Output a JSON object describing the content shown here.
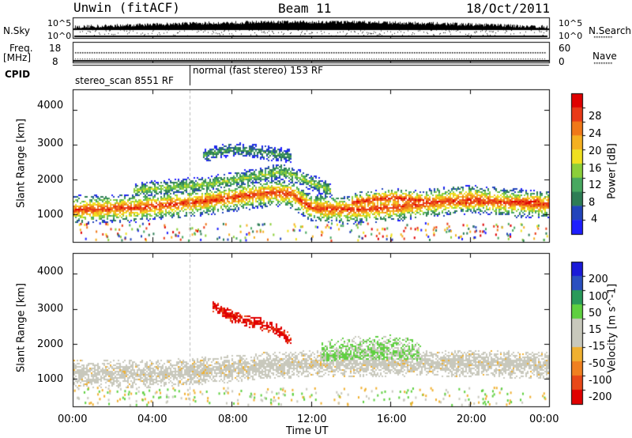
{
  "header": {
    "site": "Unwin (fitACF)",
    "beam": "Beam 11",
    "date": "18/Oct/2011"
  },
  "summary": {
    "nsky_label": "N.Sky",
    "nsearch_label": "N.Search",
    "nsky_ticks": [
      "10^5",
      "10^0"
    ],
    "nsearch_ticks": [
      "10^5",
      "10^0"
    ],
    "freq_label": "Freq.",
    "freq_unit": "[MHz]",
    "freq_ticks": [
      "18",
      "8"
    ],
    "nave_label": "Nave",
    "nave_ticks": [
      "60",
      "0"
    ],
    "cpid_label": "CPID",
    "cpid_segments": [
      "stereo_scan 8551 RF",
      "normal (fast stereo) 153 RF"
    ]
  },
  "colors": {
    "power": [
      "#1e1eff",
      "#2244bb",
      "#2e7d55",
      "#48a860",
      "#8ccf3a",
      "#f0e020",
      "#f5b020",
      "#f07818",
      "#e83a18",
      "#e00000"
    ],
    "velocity": [
      "#1a1ad8",
      "#2a4fc0",
      "#2a9a5a",
      "#5fd040",
      "#c8c8bc",
      "#c8c8bc",
      "#f0b030",
      "#f08020",
      "#e84818",
      "#e00000"
    ],
    "ground_scatter": "#c8c8bc"
  },
  "chart_data": [
    {
      "type": "heatmap",
      "panel": "power",
      "ylabel": "Slant Range [km]",
      "xlabel": "Time UT",
      "x_ticks": [
        "00:00",
        "04:00",
        "08:00",
        "12:00",
        "16:00",
        "20:00",
        "00:00"
      ],
      "xlim_hours": [
        0,
        24
      ],
      "ylim_km": [
        200,
        4600
      ],
      "y_ticks": [
        "1000",
        "2000",
        "3000",
        "4000"
      ],
      "colorbar": {
        "label": "Power [dB]",
        "ticks": [
          "4",
          "8",
          "12",
          "16",
          "20",
          "24",
          "28"
        ],
        "range": [
          0,
          30
        ]
      },
      "bands": [
        {
          "name": "ionospheric",
          "points": [
            [
              0,
              1150
            ],
            [
              3,
              1200
            ],
            [
              6,
              1350
            ],
            [
              8,
              1500
            ],
            [
              10,
              1650
            ],
            [
              11,
              1600
            ],
            [
              12,
              1200
            ],
            [
              14,
              1150
            ],
            [
              16,
              1200
            ],
            [
              18,
              1350
            ],
            [
              20,
              1450
            ],
            [
              22,
              1350
            ],
            [
              24,
              1300
            ]
          ],
          "width": 320,
          "peak": 26
        },
        {
          "name": "upper",
          "points": [
            [
              3,
              1700
            ],
            [
              5,
              1800
            ],
            [
              7,
              1900
            ],
            [
              9,
              2100
            ],
            [
              10.5,
              2250
            ],
            [
              11.5,
              2050
            ],
            [
              13,
              1700
            ]
          ],
          "width": 180,
          "peak": 14
        },
        {
          "name": "far",
          "points": [
            [
              6.5,
              2700
            ],
            [
              8,
              2900
            ],
            [
              9.5,
              2800
            ],
            [
              11,
              2700
            ]
          ],
          "width": 160,
          "peak": 10
        },
        {
          "name": "evening",
          "points": [
            [
              14,
              1350
            ],
            [
              16,
              1500
            ],
            [
              18,
              1400
            ],
            [
              20,
              1350
            ],
            [
              23.5,
              1400
            ]
          ],
          "width": 220,
          "peak": 27
        }
      ]
    },
    {
      "type": "heatmap",
      "panel": "velocity",
      "ylabel": "Slant Range [km]",
      "xlabel": "Time UT",
      "x_ticks": [
        "00:00",
        "04:00",
        "08:00",
        "12:00",
        "16:00",
        "20:00",
        "00:00"
      ],
      "xlim_hours": [
        0,
        24
      ],
      "ylim_km": [
        200,
        4600
      ],
      "y_ticks": [
        "1000",
        "2000",
        "3000",
        "4000"
      ],
      "colorbar": {
        "label": "Velocity [m s^-1]",
        "ticks": [
          "200",
          "100",
          "50",
          "15",
          "-15",
          "-50",
          "-100",
          "-200"
        ]
      },
      "bands": [
        {
          "name": "ground",
          "points": [
            [
              0,
              1150
            ],
            [
              4,
              1150
            ],
            [
              8,
              1300
            ],
            [
              10,
              1400
            ],
            [
              12,
              1450
            ],
            [
              16,
              1450
            ],
            [
              20,
              1450
            ],
            [
              24,
              1400
            ]
          ],
          "width": 300,
          "velocity": 0
        },
        {
          "name": "negative",
          "points": [
            [
              7,
              3100
            ],
            [
              8,
              2800
            ],
            [
              10,
              2500
            ],
            [
              11,
              2100
            ]
          ],
          "width": 140,
          "velocity": -180
        },
        {
          "name": "positive",
          "points": [
            [
              12.5,
              1600
            ],
            [
              14,
              1700
            ],
            [
              16,
              1750
            ],
            [
              17.5,
              1600
            ]
          ],
          "width": 400,
          "velocity": 40
        }
      ]
    }
  ]
}
